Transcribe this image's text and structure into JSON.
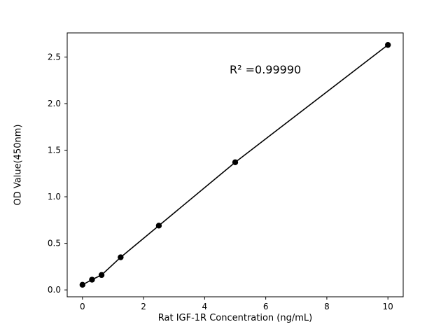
{
  "chart_data": {
    "type": "scatter",
    "title": "",
    "xlabel": "Rat IGF-1R Concentration (ng/mL)",
    "ylabel": "OD Value(450nm)",
    "annotation": "R² =0.99990",
    "x": [
      0,
      0.3125,
      0.625,
      1.25,
      2.5,
      5,
      10
    ],
    "y": [
      0.055,
      0.11,
      0.16,
      0.35,
      0.69,
      1.37,
      2.63
    ],
    "has_trend_line": true,
    "marker_color": "#000000",
    "line_color": "#000000",
    "x_ticks": [
      0,
      2,
      4,
      6,
      8,
      10
    ],
    "x_tick_labels": [
      "0",
      "2",
      "4",
      "6",
      "8",
      "10"
    ],
    "y_ticks": [
      0.0,
      0.5,
      1.0,
      1.5,
      2.0,
      2.5
    ],
    "y_tick_labels": [
      "0.0",
      "0.5",
      "1.0",
      "1.5",
      "2.0",
      "2.5"
    ],
    "xlim": [
      -0.5,
      10.5
    ],
    "ylim": [
      -0.074,
      2.759
    ],
    "grid": false,
    "legend_position": "none"
  }
}
